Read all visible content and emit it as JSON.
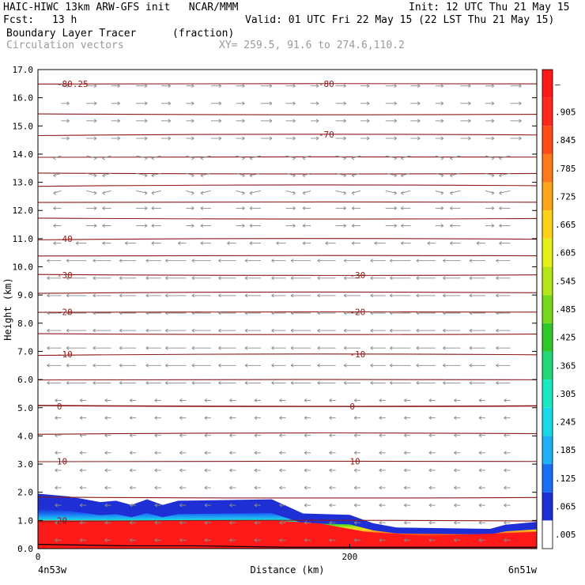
{
  "header": {
    "title": "HAIC-HIWC 13km ARW-GFS init   NCAR/MMM",
    "init": "Init: 12 UTC Thu 21 May 15",
    "fcst_label": "Fcst:",
    "fcst_value": "13 h",
    "valid": "Valid: 01 UTC Fri 22 May 15 (22 LST Thu 21 May 15)",
    "field": "Boundary Layer Tracer",
    "units": "(fraction)",
    "vectors": "Circulation vectors",
    "xy": "XY= 259.5, 91.6 to 274.6,110.2"
  },
  "chart_data": {
    "type": "heatmap",
    "ylabel": "Height (km)",
    "xlabel": "Distance (km)",
    "x_left_label": "4n53w",
    "x_right_label": "6n51w",
    "xlim": [
      0,
      320
    ],
    "ylim": [
      0,
      17
    ],
    "x_ticks": [
      {
        "value": 0,
        "label": "0"
      },
      {
        "value": 200,
        "label": "200"
      }
    ],
    "y_ticks": [
      "0.0",
      "1.0",
      "2.0",
      "3.0",
      "4.0",
      "5.0",
      "6.0",
      "7.0",
      "8.0",
      "9.0",
      "10.0",
      "11.0",
      "12.0",
      "13.0",
      "14.0",
      "15.0",
      "16.0",
      "17.0"
    ],
    "colorbar": {
      "labels": [
        ".005",
        ".065",
        ".125",
        ".185",
        ".245",
        ".305",
        ".365",
        ".425",
        ".485",
        ".545",
        ".605",
        ".665",
        ".725",
        ".785",
        ".845",
        ".905",
        "–"
      ],
      "colors": [
        "#ffffff",
        "#1f2fd6",
        "#1a6ef5",
        "#1fb0f5",
        "#19d8e8",
        "#19e8c0",
        "#23d77a",
        "#2fc92a",
        "#74d91a",
        "#b4e61a",
        "#e6f01a",
        "#ffd21a",
        "#ffa51a",
        "#ff7a1a",
        "#ff4d1a",
        "#ff2a1a",
        "#ff1a1a"
      ]
    },
    "temperature_contours": {
      "levels": [
        20,
        10,
        0,
        -10,
        -20,
        -30,
        -40,
        -70,
        -80
      ],
      "labels": [
        {
          "text": "20",
          "x": 5,
          "y": 1.0
        },
        {
          "text": "10",
          "x": 5,
          "y": 3.1
        },
        {
          "text": "10",
          "x": 200,
          "y": 3.1
        },
        {
          "text": "0",
          "x": 5,
          "y": 5.05
        },
        {
          "text": "0",
          "x": 200,
          "y": 5.05
        },
        {
          "text": "-10",
          "x": 5,
          "y": 6.9
        },
        {
          "text": "-10",
          "x": 200,
          "y": 6.9
        },
        {
          "text": "-20",
          "x": 5,
          "y": 8.4
        },
        {
          "text": "-20",
          "x": 200,
          "y": 8.4
        },
        {
          "text": "-30",
          "x": 5,
          "y": 9.7
        },
        {
          "text": "-30",
          "x": 200,
          "y": 9.7
        },
        {
          "text": "-40",
          "x": 5,
          "y": 11.0
        },
        {
          "text": "-70",
          "x": 180,
          "y": 14.7
        },
        {
          "text": "-80",
          "x": 180,
          "y": 16.5
        },
        {
          "text": "-80.25",
          "x": 5,
          "y": 16.5
        }
      ]
    },
    "tracer_top_km": [
      {
        "x": 0,
        "y": 1.95
      },
      {
        "x": 20,
        "y": 1.85
      },
      {
        "x": 40,
        "y": 1.65
      },
      {
        "x": 50,
        "y": 1.7
      },
      {
        "x": 60,
        "y": 1.55
      },
      {
        "x": 70,
        "y": 1.75
      },
      {
        "x": 80,
        "y": 1.55
      },
      {
        "x": 90,
        "y": 1.7
      },
      {
        "x": 150,
        "y": 1.75
      },
      {
        "x": 160,
        "y": 1.5
      },
      {
        "x": 170,
        "y": 1.25
      },
      {
        "x": 200,
        "y": 1.2
      },
      {
        "x": 215,
        "y": 0.9
      },
      {
        "x": 230,
        "y": 0.75
      },
      {
        "x": 290,
        "y": 0.7
      },
      {
        "x": 300,
        "y": 0.85
      },
      {
        "x": 320,
        "y": 0.95
      }
    ],
    "tracer_red_top_km": [
      {
        "x": 0,
        "y": 1.0
      },
      {
        "x": 150,
        "y": 1.0
      },
      {
        "x": 180,
        "y": 0.9
      },
      {
        "x": 210,
        "y": 0.6
      },
      {
        "x": 250,
        "y": 0.45
      },
      {
        "x": 300,
        "y": 0.55
      },
      {
        "x": 320,
        "y": 0.6
      }
    ],
    "terrain_km": [
      {
        "x": 0,
        "y": 0.15
      },
      {
        "x": 60,
        "y": 0.1
      },
      {
        "x": 100,
        "y": 0.1
      },
      {
        "x": 160,
        "y": 0.05
      },
      {
        "x": 240,
        "y": 0.05
      },
      {
        "x": 320,
        "y": 0.05
      }
    ]
  }
}
